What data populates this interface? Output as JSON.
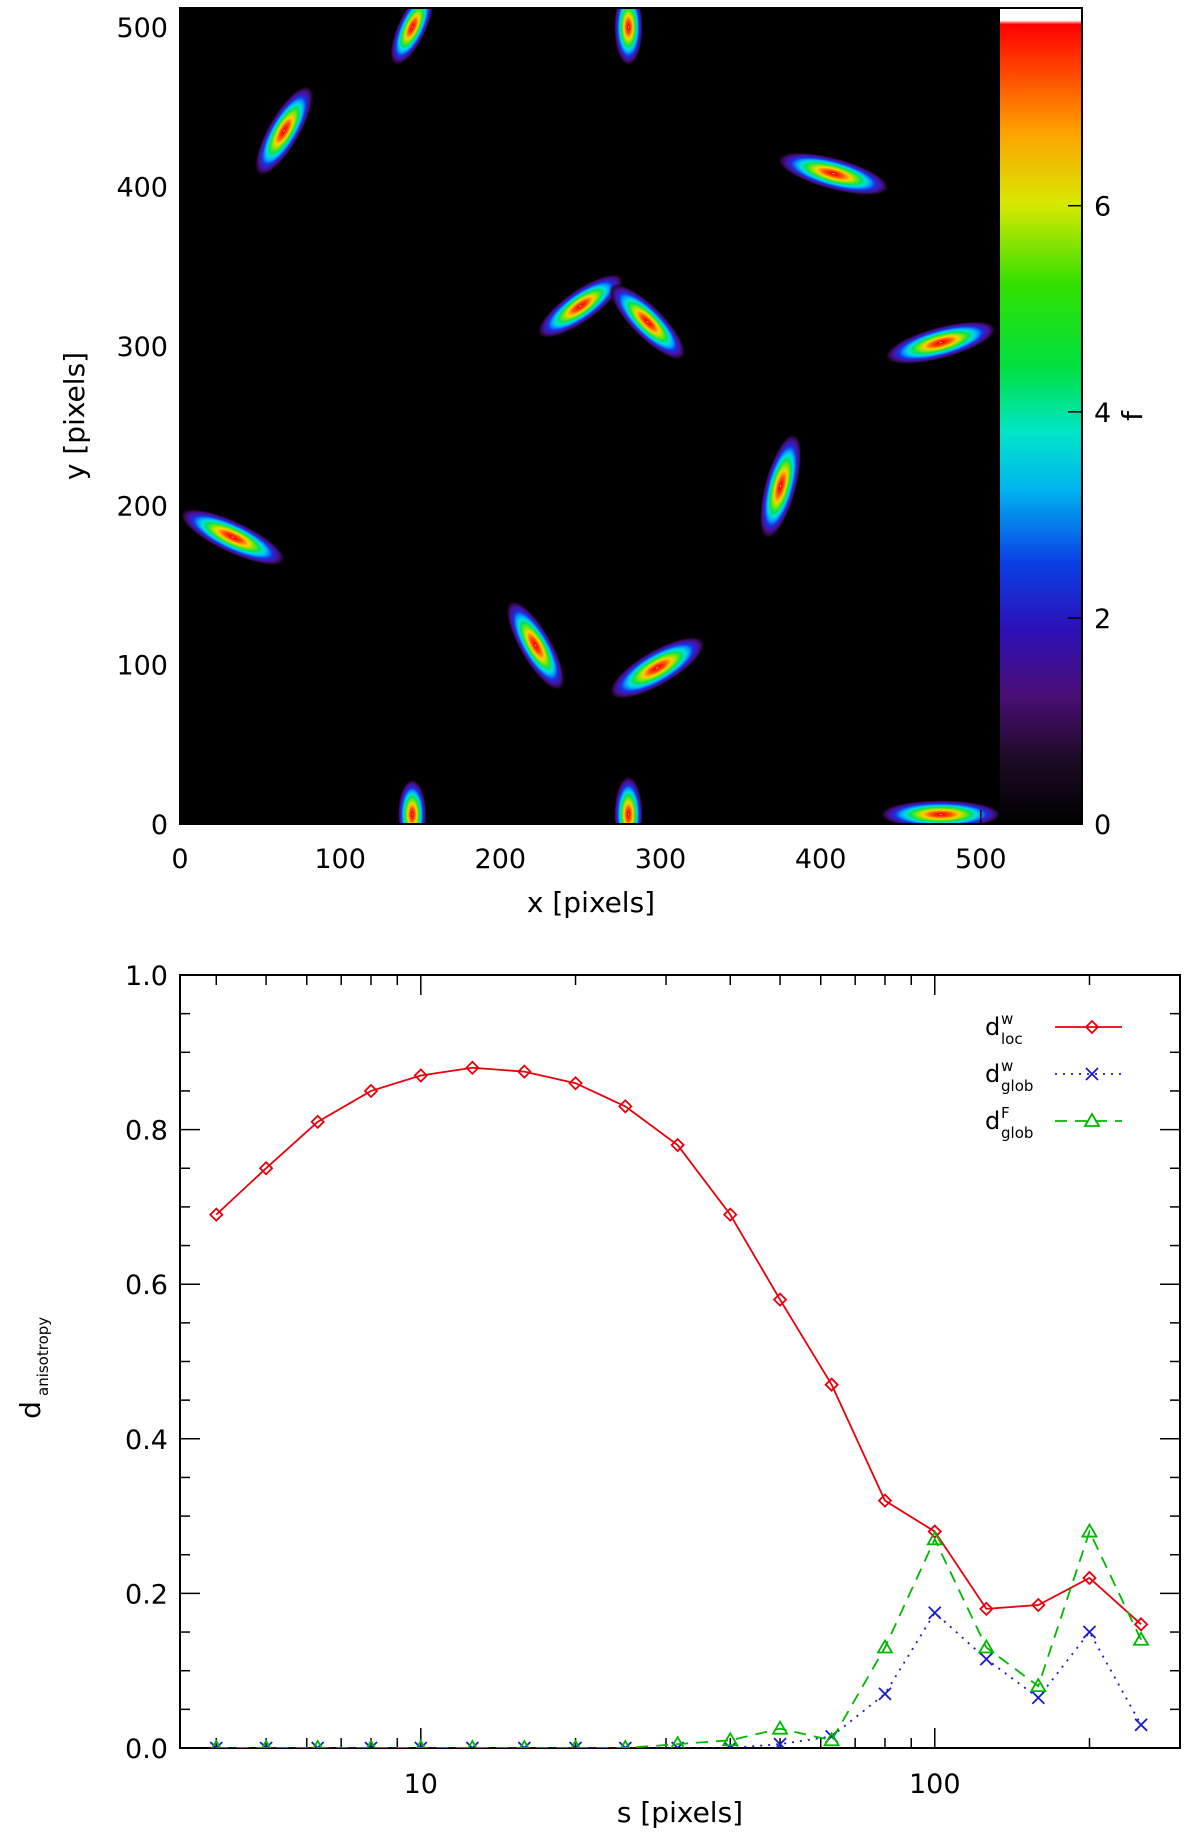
{
  "chart_data": [
    {
      "type": "heatmap",
      "title": "",
      "xlabel": "x [pixels]",
      "ylabel": "y [pixels]",
      "xlim": [
        0,
        512
      ],
      "ylim": [
        0,
        512
      ],
      "x_ticks": [
        0,
        100,
        200,
        300,
        400,
        500
      ],
      "y_ticks": [
        0,
        100,
        200,
        300,
        400,
        500
      ],
      "colorbar": {
        "label": "f",
        "range": [
          0,
          7.8
        ],
        "ticks": [
          0,
          2,
          4,
          6
        ],
        "colormap": "rainbow (black-purple-blue-cyan-green-yellow-orange-red)"
      },
      "blobs": [
        {
          "x": 145,
          "y": 500,
          "angle_deg": 65,
          "major": 26,
          "minor": 9
        },
        {
          "x": 280,
          "y": 500,
          "angle_deg": 90,
          "major": 24,
          "minor": 9
        },
        {
          "x": 65,
          "y": 435,
          "angle_deg": 60,
          "major": 32,
          "minor": 10
        },
        {
          "x": 408,
          "y": 408,
          "angle_deg": -15,
          "major": 36,
          "minor": 10
        },
        {
          "x": 250,
          "y": 325,
          "angle_deg": 35,
          "major": 32,
          "minor": 10
        },
        {
          "x": 292,
          "y": 315,
          "angle_deg": -45,
          "major": 32,
          "minor": 10
        },
        {
          "x": 475,
          "y": 302,
          "angle_deg": 15,
          "major": 36,
          "minor": 10
        },
        {
          "x": 375,
          "y": 212,
          "angle_deg": 75,
          "major": 34,
          "minor": 10
        },
        {
          "x": 33,
          "y": 180,
          "angle_deg": -25,
          "major": 36,
          "minor": 10
        },
        {
          "x": 222,
          "y": 112,
          "angle_deg": -60,
          "major": 32,
          "minor": 10
        },
        {
          "x": 298,
          "y": 98,
          "angle_deg": 30,
          "major": 34,
          "minor": 11
        },
        {
          "x": 145,
          "y": 6,
          "angle_deg": 90,
          "major": 22,
          "minor": 9
        },
        {
          "x": 280,
          "y": 6,
          "angle_deg": 90,
          "major": 24,
          "minor": 9
        },
        {
          "x": 475,
          "y": 6,
          "angle_deg": 0,
          "major": 38,
          "minor": 9
        }
      ]
    },
    {
      "type": "line",
      "title": "",
      "xlabel": "s [pixels]",
      "ylabel": "d",
      "ylabel_sub": "anisotropy",
      "xscale": "log",
      "xlim": [
        3.4,
        300
      ],
      "ylim": [
        0,
        1.0
      ],
      "x_ticks": [
        10,
        100
      ],
      "y_ticks": [
        "0.0",
        "0.2",
        "0.4",
        "0.6",
        "0.8",
        "1.0"
      ],
      "x": [
        4,
        5,
        6.3,
        8,
        10,
        12.6,
        15.9,
        20,
        25,
        31.6,
        40,
        50,
        63,
        80,
        100,
        126,
        159,
        200,
        252
      ],
      "series": [
        {
          "name": "d_loc^w",
          "label_main": "d",
          "label_sup": "w",
          "label_sub": "loc",
          "color": "#e8000b",
          "dash": "solid",
          "marker": "diamond",
          "values": [
            0.69,
            0.75,
            0.81,
            0.85,
            0.87,
            0.88,
            0.875,
            0.86,
            0.83,
            0.78,
            0.69,
            0.58,
            0.47,
            0.32,
            0.28,
            0.18,
            0.185,
            0.22,
            0.16
          ]
        },
        {
          "name": "d_glob^w",
          "label_main": "d",
          "label_sup": "w",
          "label_sub": "glob",
          "color": "#1a1acc",
          "dash": "dotted",
          "marker": "x",
          "values": [
            0,
            0,
            0,
            0,
            0,
            0,
            0,
            0,
            0,
            0,
            0,
            0.005,
            0.015,
            0.07,
            0.175,
            0.115,
            0.065,
            0.15,
            0.03
          ]
        },
        {
          "name": "d_glob^F",
          "label_main": "d",
          "label_sup": "F",
          "label_sub": "glob",
          "color": "#00b800",
          "dash": "dashed",
          "marker": "triangle",
          "values": [
            0,
            0,
            0,
            0,
            0,
            0,
            0,
            0,
            0,
            0.005,
            0.01,
            0.025,
            0.01,
            0.13,
            0.27,
            0.13,
            0.08,
            0.28,
            0.14
          ]
        }
      ],
      "legend_position": "top-right"
    }
  ]
}
